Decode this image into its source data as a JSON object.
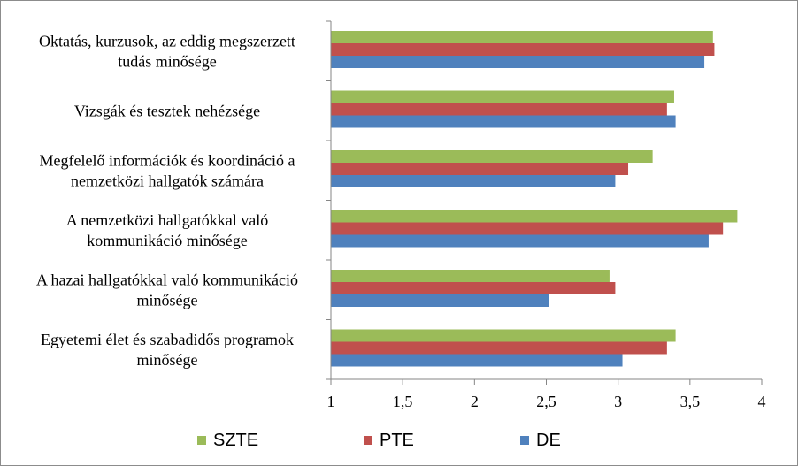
{
  "chart_data": {
    "type": "bar",
    "orientation": "horizontal",
    "categories": [
      [
        "Oktatás, kurzusok, az eddig megszerzett",
        "tudás minősége"
      ],
      [
        "Vizsgák és tesztek nehézsége"
      ],
      [
        "Megfelelő információk és koordináció a",
        "nemzetközi hallgatók számára"
      ],
      [
        "A nemzetközi hallgatókkal való",
        "kommunikáció minősége"
      ],
      [
        "A hazai hallgatókkal való kommunikáció",
        "minősége"
      ],
      [
        "Egyetemi élet és szabadidős programok",
        "minősége"
      ]
    ],
    "series": [
      {
        "name": "SZTE",
        "color": "#9bbb59",
        "values": [
          3.66,
          3.39,
          3.24,
          3.83,
          2.94,
          3.4
        ]
      },
      {
        "name": "PTE",
        "color": "#c0504d",
        "values": [
          3.67,
          3.34,
          3.07,
          3.73,
          2.98,
          3.34
        ]
      },
      {
        "name": "DE",
        "color": "#4f81bd",
        "values": [
          3.6,
          3.4,
          2.98,
          3.63,
          2.52,
          3.03
        ]
      }
    ],
    "xlim": [
      1,
      4
    ],
    "xticks": [
      1,
      1.5,
      2,
      2.5,
      3,
      3.5,
      4
    ],
    "xtick_labels": [
      "1",
      "1,5",
      "2",
      "2,5",
      "3",
      "3,5",
      "4"
    ],
    "grid": false,
    "legend_position": "bottom",
    "title": "",
    "xlabel": "",
    "ylabel": ""
  }
}
